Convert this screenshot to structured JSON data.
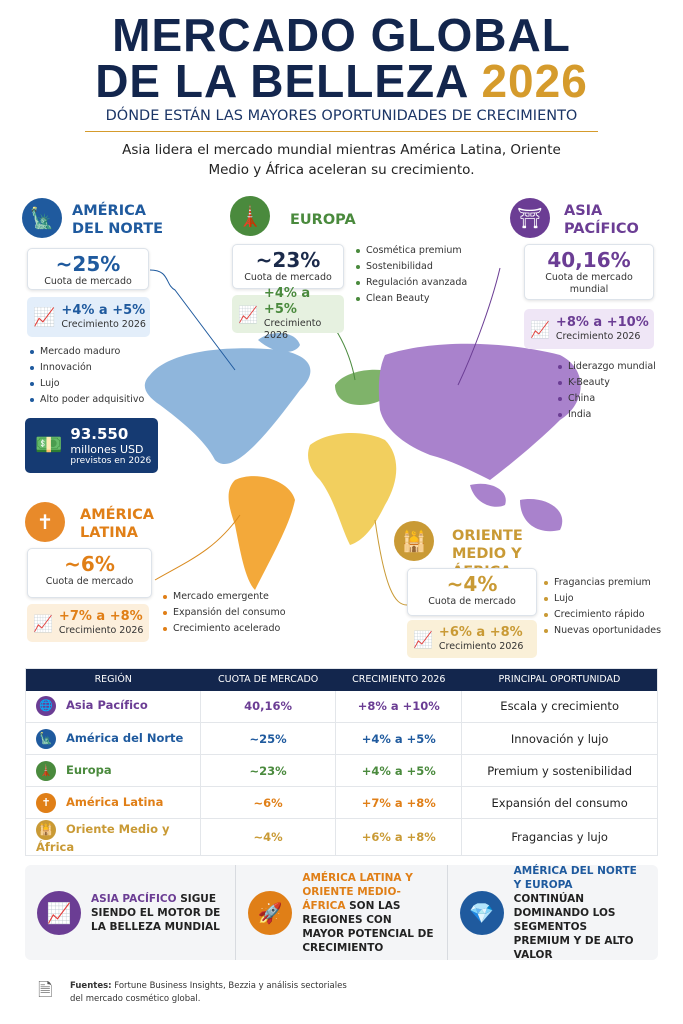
{
  "header": {
    "title_line1": "MERCADO GLOBAL",
    "title_line2": "DE LA BELLEZA",
    "year": "2026",
    "subtitle": "DÓNDE ESTÁN LAS MAYORES OPORTUNIDADES DE CRECIMIENTO",
    "intro": "Asia lidera el mercado mundial mientras América Latina, Oriente Medio y África aceleran su crecimiento."
  },
  "regions": [
    {
      "name": "AMÉRICA DEL NORTE",
      "share": "~25%",
      "share_label": "Cuota de mercado",
      "growth": "+4% a +5%",
      "growth_label": "Crecimiento 2026",
      "bullets": [
        "Mercado maduro",
        "Innovación",
        "Lujo",
        "Alto poder adquisitivo"
      ],
      "amount": "93.550",
      "amount_unit": "millones USD",
      "amount_note": "previstos en 2026"
    },
    {
      "name": "EUROPA",
      "share": "~23%",
      "share_label": "Cuota de mercado",
      "growth": "+4% a +5%",
      "growth_label": "Crecimiento 2026",
      "bullets": [
        "Cosmética premium",
        "Sostenibilidad",
        "Regulación avanzada",
        "Clean Beauty"
      ]
    },
    {
      "name": "ASIA PACÍFICO",
      "share": "40,16%",
      "share_label": "Cuota de mercado mundial",
      "growth": "+8% a +10%",
      "growth_label": "Crecimiento 2026",
      "bullets": [
        "Liderazgo mundial",
        "K-Beauty",
        "China",
        "India"
      ]
    },
    {
      "name": "AMÉRICA LATINA",
      "share": "~6%",
      "share_label": "Cuota de mercado",
      "growth": "+7% a +8%",
      "growth_label": "Crecimiento 2026",
      "bullets": [
        "Mercado emergente",
        "Expansión del consumo",
        "Crecimiento acelerado"
      ]
    },
    {
      "name": "ORIENTE MEDIO Y ÁFRICA",
      "share": "~4%",
      "share_label": "Cuota de mercado",
      "growth": "+6% a +8%",
      "growth_label": "Crecimiento 2026",
      "bullets": [
        "Fragancias premium",
        "Lujo",
        "Crecimiento rápido",
        "Nuevas oportunidades"
      ]
    }
  ],
  "table": {
    "headers": [
      "REGIÓN",
      "CUOTA DE MERCADO",
      "CRECIMIENTO 2026",
      "PRINCIPAL OPORTUNIDAD"
    ],
    "rows": [
      [
        "Asia Pacífico",
        "40,16%",
        "+8% a +10%",
        "Escala y crecimiento"
      ],
      [
        "América del Norte",
        "~25%",
        "+4% a +5%",
        "Innovación y lujo"
      ],
      [
        "Europa",
        "~23%",
        "+4% a +5%",
        "Premium y sostenibilidad"
      ],
      [
        "América Latina",
        "~6%",
        "+7% a +8%",
        "Expansión del consumo"
      ],
      [
        "Oriente Medio y África",
        "~4%",
        "+6% a +8%",
        "Fragancias y lujo"
      ]
    ]
  },
  "highlights": [
    {
      "highlight": "ASIA PACÍFICO",
      "text": "SIGUE SIENDO EL MOTOR DE LA BELLEZA MUNDIAL"
    },
    {
      "highlight": "AMÉRICA LATINA Y ORIENTE MEDIO-ÁFRICA",
      "text": "SON LAS REGIONES CON MAYOR POTENCIAL DE CRECIMIENTO"
    },
    {
      "highlight": "AMÉRICA DEL NORTE Y EUROPA",
      "text": "CONTINÚAN DOMINANDO LOS SEGMENTOS PREMIUM Y DE ALTO VALOR"
    }
  ],
  "sources": {
    "label": "Fuentes:",
    "text": "Fortune Business Insights, Bezzia y análisis sectoriales del mercado cosmético global."
  }
}
